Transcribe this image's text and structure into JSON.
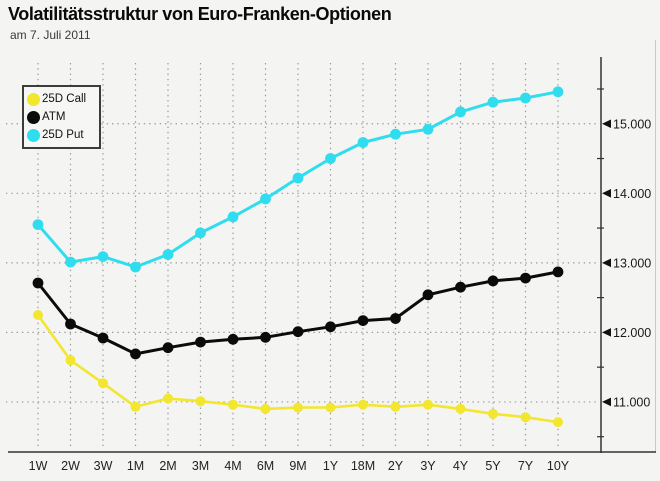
{
  "header": {
    "title": "Volatilitätsstruktur von Euro-Franken-Optionen",
    "subtitle": "am 7. Juli 2011"
  },
  "legend": {
    "items": [
      {
        "label": "25D Call",
        "color": "#f2e62e"
      },
      {
        "label": "ATM",
        "color": "#0b0b0b"
      },
      {
        "label": "25D Put",
        "color": "#2fddef"
      }
    ]
  },
  "colors": {
    "background": "#f4f4f2",
    "grid": "#999999",
    "axis": "#333333",
    "tick_text": "#1a1a1a",
    "frame_right": "#c9c9c6"
  },
  "chart_data": {
    "type": "line",
    "title": "Volatilitätsstruktur von Euro-Franken-Optionen",
    "subtitle": "am 7. Juli 2011",
    "categories": [
      "1W",
      "2W",
      "3W",
      "1M",
      "2M",
      "3M",
      "4M",
      "6M",
      "9M",
      "1Y",
      "18M",
      "2Y",
      "3Y",
      "4Y",
      "5Y",
      "7Y",
      "10Y"
    ],
    "series": [
      {
        "name": "25D Put",
        "color": "#2fddef",
        "values": [
          13.55,
          13.01,
          13.09,
          12.94,
          13.12,
          13.43,
          13.66,
          13.92,
          14.22,
          14.5,
          14.73,
          14.85,
          14.92,
          15.17,
          15.31,
          15.37,
          15.46
        ]
      },
      {
        "name": "ATM",
        "color": "#0b0b0b",
        "values": [
          12.71,
          12.12,
          11.92,
          11.69,
          11.78,
          11.86,
          11.9,
          11.93,
          12.01,
          12.08,
          12.17,
          12.2,
          12.54,
          12.65,
          12.74,
          12.78,
          12.87
        ]
      },
      {
        "name": "25D Call",
        "color": "#f2e62e",
        "values": [
          12.25,
          11.6,
          11.27,
          10.93,
          11.05,
          11.01,
          10.96,
          10.9,
          10.92,
          10.92,
          10.96,
          10.93,
          10.96,
          10.9,
          10.83,
          10.78,
          10.71
        ]
      }
    ],
    "xlabel": "",
    "ylabel": "",
    "ylim": [
      10.28,
      15.96
    ],
    "yticks": [
      {
        "value": 11,
        "label": "11.000"
      },
      {
        "value": 12,
        "label": "12.000"
      },
      {
        "value": 13,
        "label": "13.000"
      },
      {
        "value": 14,
        "label": "14.000"
      },
      {
        "value": 15,
        "label": "15.000"
      }
    ],
    "yticks_minor": [
      10.5,
      11.5,
      12.5,
      13.5,
      14.5,
      15.5
    ],
    "grid": "dotted",
    "legend_position": "top-left",
    "axis_side": "right"
  }
}
